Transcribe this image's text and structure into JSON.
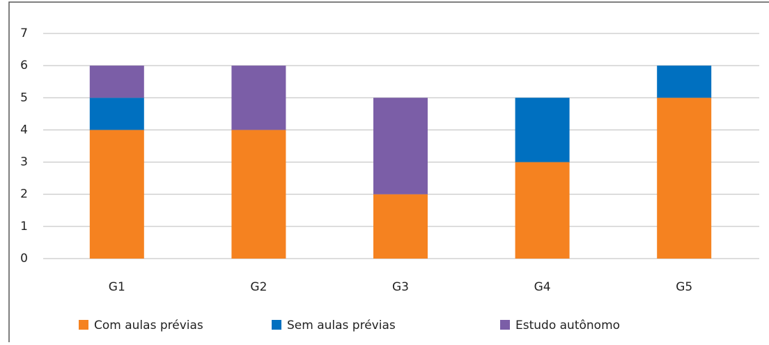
{
  "chart_data": {
    "type": "stacked_bar",
    "categories": [
      "G1",
      "G2",
      "G3",
      "G4",
      "G5"
    ],
    "series": [
      {
        "name": "Com aulas prévias",
        "color": "#f58220",
        "values": [
          4,
          4,
          2,
          3,
          5
        ]
      },
      {
        "name": "Sem aulas prévias",
        "color": "#0070c0",
        "values": [
          1,
          0,
          0,
          2,
          1
        ]
      },
      {
        "name": "Estudo autônomo",
        "color": "#7b5ea7",
        "values": [
          1,
          2,
          3,
          0,
          0
        ]
      }
    ],
    "ylim": [
      0,
      7
    ],
    "yticks": [
      0,
      1,
      2,
      3,
      4,
      5,
      6,
      7
    ],
    "grid": true,
    "legend": "bottom"
  }
}
